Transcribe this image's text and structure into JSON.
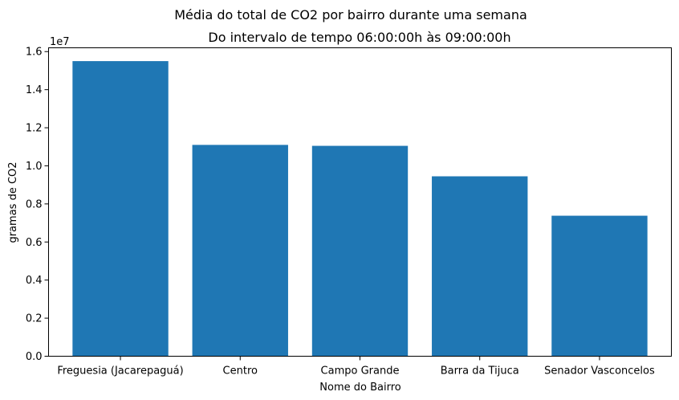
{
  "chart_data": {
    "type": "bar",
    "title": "Média do total de CO2 por bairro durante uma semana",
    "subtitle": "Do intervalo de tempo 06:00:00h às 09:00:00h",
    "xlabel": "Nome do Bairro",
    "ylabel": "gramas de CO2",
    "y_offset_label": "1e7",
    "categories": [
      "Freguesia (Jacarepaguá)",
      "Centro",
      "Campo Grande",
      "Barra da Tijuca",
      "Senador Vasconcelos"
    ],
    "values": [
      15500000,
      11100000,
      11050000,
      9450000,
      7380000
    ],
    "ylim": [
      0,
      16200000
    ],
    "yticks": [
      0,
      2000000,
      4000000,
      6000000,
      8000000,
      10000000,
      12000000,
      14000000,
      16000000
    ],
    "ytick_labels": [
      "0.0",
      "0.2",
      "0.4",
      "0.6",
      "0.8",
      "1.0",
      "1.2",
      "1.4",
      "1.6"
    ],
    "bar_color": "#1f77b4",
    "grid": false,
    "legend": "none"
  }
}
